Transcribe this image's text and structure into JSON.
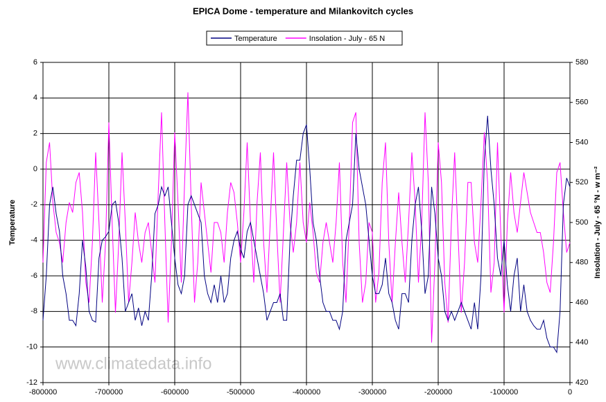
{
  "chart_data": {
    "type": "line",
    "title": "EPICA Dome - temperature and Milankovitch cycles",
    "y_label": "Temperature",
    "y2_label": "Insolation - July - 65 °N - w m⁻²",
    "watermark": "www.climatedata.info",
    "legend_position": "top",
    "grid": true,
    "xlim": [
      -800000,
      0
    ],
    "xticks": [
      -800000,
      -700000,
      -600000,
      -500000,
      -400000,
      -300000,
      -200000,
      -100000,
      0
    ],
    "ylim": [
      -12,
      6
    ],
    "yticks": [
      -12,
      -10,
      -8,
      -6,
      -4,
      -2,
      0,
      2,
      4,
      6
    ],
    "y2lim": [
      420,
      580
    ],
    "y2ticks": [
      420,
      440,
      460,
      480,
      500,
      520,
      540,
      560,
      580
    ],
    "x": [
      -800000,
      -795000,
      -790000,
      -785000,
      -780000,
      -775000,
      -770000,
      -765000,
      -760000,
      -755000,
      -750000,
      -745000,
      -740000,
      -735000,
      -730000,
      -725000,
      -720000,
      -715000,
      -710000,
      -705000,
      -700000,
      -695000,
      -690000,
      -685000,
      -680000,
      -675000,
      -670000,
      -665000,
      -660000,
      -655000,
      -650000,
      -645000,
      -640000,
      -635000,
      -630000,
      -625000,
      -620000,
      -615000,
      -610000,
      -605000,
      -600000,
      -595000,
      -590000,
      -585000,
      -580000,
      -575000,
      -570000,
      -565000,
      -560000,
      -555000,
      -550000,
      -545000,
      -540000,
      -535000,
      -530000,
      -525000,
      -520000,
      -515000,
      -510000,
      -505000,
      -500000,
      -495000,
      -490000,
      -485000,
      -480000,
      -475000,
      -470000,
      -465000,
      -460000,
      -455000,
      -450000,
      -445000,
      -440000,
      -435000,
      -430000,
      -425000,
      -420000,
      -415000,
      -410000,
      -405000,
      -400000,
      -395000,
      -390000,
      -385000,
      -380000,
      -375000,
      -370000,
      -365000,
      -360000,
      -355000,
      -350000,
      -345000,
      -340000,
      -335000,
      -330000,
      -325000,
      -320000,
      -315000,
      -310000,
      -305000,
      -300000,
      -295000,
      -290000,
      -285000,
      -280000,
      -275000,
      -270000,
      -265000,
      -260000,
      -255000,
      -250000,
      -245000,
      -240000,
      -235000,
      -230000,
      -225000,
      -220000,
      -215000,
      -210000,
      -205000,
      -200000,
      -195000,
      -190000,
      -185000,
      -180000,
      -175000,
      -170000,
      -165000,
      -160000,
      -155000,
      -150000,
      -145000,
      -140000,
      -135000,
      -130000,
      -125000,
      -120000,
      -115000,
      -110000,
      -105000,
      -100000,
      -95000,
      -90000,
      -85000,
      -80000,
      -75000,
      -70000,
      -65000,
      -60000,
      -55000,
      -50000,
      -45000,
      -40000,
      -35000,
      -30000,
      -25000,
      -20000,
      -15000,
      -10000,
      -5000,
      0
    ],
    "series": [
      {
        "name": "Temperature",
        "color": "#000080",
        "axis": "y",
        "values": [
          -8.5,
          -6,
          -2,
          -1,
          -2.5,
          -3.5,
          -6,
          -7,
          -8.5,
          -8.5,
          -8.8,
          -7,
          -4,
          -5.5,
          -8,
          -8.5,
          -8.6,
          -5,
          -4,
          -3.8,
          -3.5,
          -2,
          -1.8,
          -3,
          -5,
          -8,
          -7.5,
          -7,
          -8.5,
          -7.8,
          -8.8,
          -8,
          -8.5,
          -6,
          -2.5,
          -2,
          -1,
          -1.5,
          -1,
          -3,
          -5,
          -6.5,
          -7,
          -6,
          -2,
          -1.5,
          -2,
          -2.5,
          -3,
          -6,
          -7,
          -7.5,
          -6.5,
          -7.5,
          -6,
          -7.5,
          -7,
          -5,
          -4,
          -3.5,
          -4.5,
          -5,
          -3.5,
          -3,
          -4,
          -5,
          -6,
          -7,
          -8.5,
          -8,
          -7.5,
          -7.5,
          -7,
          -8.5,
          -8.5,
          -4,
          -1.5,
          0.5,
          0.5,
          2,
          2.5,
          0,
          -3,
          -4,
          -6,
          -7.5,
          -8,
          -8,
          -8.5,
          -8.5,
          -9,
          -8,
          -4,
          -3,
          -2,
          2,
          0,
          -1,
          -2,
          -4,
          -6,
          -7,
          -7,
          -6.5,
          -5,
          -7,
          -7.5,
          -8.5,
          -9,
          -7,
          -7,
          -7.5,
          -4,
          -2,
          -1,
          -3.5,
          -7,
          -6,
          -1,
          -2.5,
          -5,
          -6,
          -8,
          -8.5,
          -8,
          -8.5,
          -8,
          -7.5,
          -8,
          -8.5,
          -9,
          -7.5,
          -9,
          -6,
          0.5,
          3,
          0,
          -2,
          -5,
          -6,
          -4,
          -6.5,
          -8,
          -6,
          -5,
          -8,
          -6.5,
          -8,
          -8.5,
          -8.8,
          -9,
          -9,
          -8.5,
          -9.5,
          -10,
          -10,
          -10.3,
          -8,
          -2,
          -0.5,
          -1
        ]
      },
      {
        "name": "Insolation - July - 65 N",
        "color": "#ff00ff",
        "axis": "y2",
        "values": [
          480,
          530,
          540,
          510,
          495,
          490,
          480,
          500,
          510,
          505,
          520,
          525,
          505,
          470,
          460,
          490,
          535,
          500,
          460,
          490,
          550,
          500,
          455,
          490,
          535,
          500,
          460,
          480,
          505,
          490,
          480,
          495,
          500,
          485,
          470,
          515,
          555,
          500,
          450,
          490,
          545,
          510,
          470,
          520,
          565,
          510,
          460,
          480,
          520,
          505,
          490,
          475,
          500,
          500,
          495,
          480,
          505,
          520,
          515,
          500,
          480,
          505,
          540,
          500,
          470,
          510,
          535,
          490,
          465,
          500,
          535,
          495,
          460,
          495,
          530,
          500,
          485,
          500,
          530,
          500,
          490,
          510,
          495,
          475,
          470,
          490,
          500,
          490,
          480,
          500,
          530,
          480,
          460,
          500,
          550,
          555,
          490,
          460,
          470,
          500,
          495,
          460,
          475,
          520,
          540,
          490,
          460,
          490,
          515,
          490,
          470,
          500,
          535,
          510,
          470,
          500,
          555,
          520,
          440,
          480,
          540,
          520,
          470,
          450,
          500,
          535,
          495,
          455,
          480,
          520,
          520,
          490,
          480,
          510,
          545,
          520,
          465,
          480,
          540,
          495,
          455,
          500,
          525,
          505,
          495,
          510,
          525,
          515,
          505,
          500,
          495,
          495,
          485,
          470,
          465,
          490,
          525,
          530,
          505,
          485,
          490
        ]
      }
    ]
  }
}
